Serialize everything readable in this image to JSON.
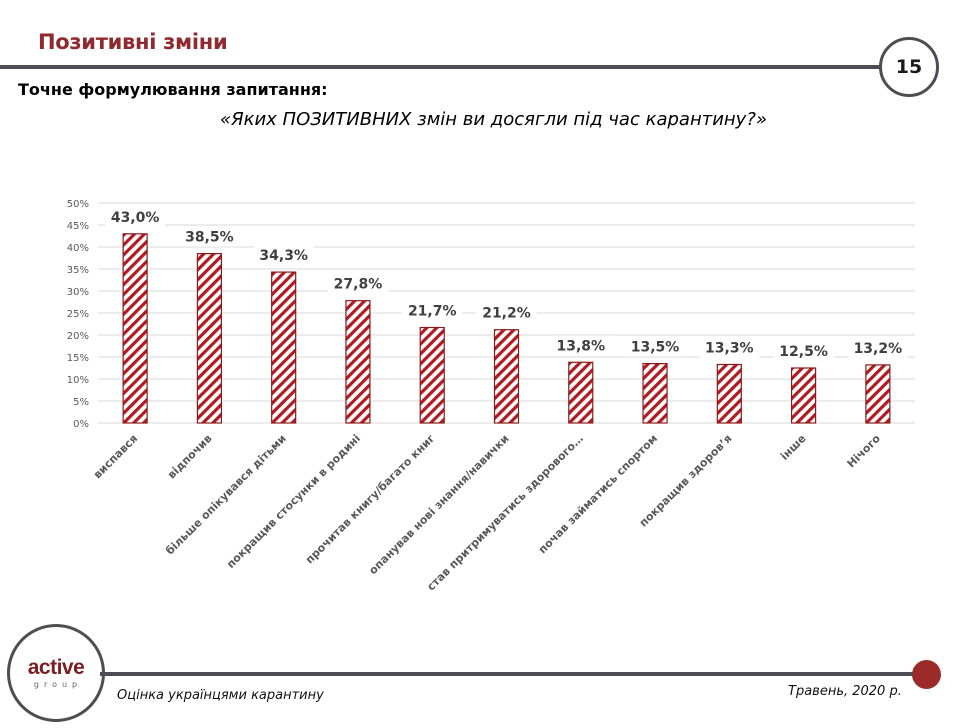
{
  "header": {
    "section_title": "Позитивні зміни",
    "page_number": "15"
  },
  "question": {
    "label": "Точне формулювання запитання:",
    "text": "«Яких ПОЗИТИВНИХ змін ви досягли під час карантину?»"
  },
  "footer": {
    "logo_main": "active",
    "logo_sub": "group",
    "survey_name": "Оцінка українцями карантину",
    "date": "Травень, 2020 р."
  },
  "colors": {
    "accent": "#8f2a2e",
    "bar_stripe": "#b01b22",
    "bar_border": "#8b1a1a",
    "rule": "#4d4d53",
    "dot": "#9b2b2b"
  },
  "chart_data": {
    "type": "bar",
    "title": "",
    "xlabel": "",
    "ylabel": "",
    "ylim": [
      0,
      50
    ],
    "y_ticks": [
      "0%",
      "5%",
      "10%",
      "15%",
      "20%",
      "25%",
      "30%",
      "35%",
      "40%",
      "45%",
      "50%"
    ],
    "y_tick_values": [
      0,
      5,
      10,
      15,
      20,
      25,
      30,
      35,
      40,
      45,
      50
    ],
    "grid": true,
    "legend": "none",
    "categories": [
      "виспався",
      "відпочив",
      "більше опікувався дітьми",
      "покращив стосунки в родині",
      "прочитав книгу/багато книг",
      "опанував нові знання/навички",
      "став притримуватись здорового…",
      "почав займатись спортом",
      "покращив здоров’я",
      "інше",
      "Нічого"
    ],
    "values": [
      43.0,
      38.5,
      34.3,
      27.8,
      21.7,
      21.2,
      13.8,
      13.5,
      13.3,
      12.5,
      13.2
    ],
    "data_labels": [
      "43,0%",
      "38,5%",
      "34,3%",
      "27,8%",
      "21,7%",
      "21,2%",
      "13,8%",
      "13,5%",
      "13,3%",
      "12,5%",
      "13,2%"
    ]
  }
}
